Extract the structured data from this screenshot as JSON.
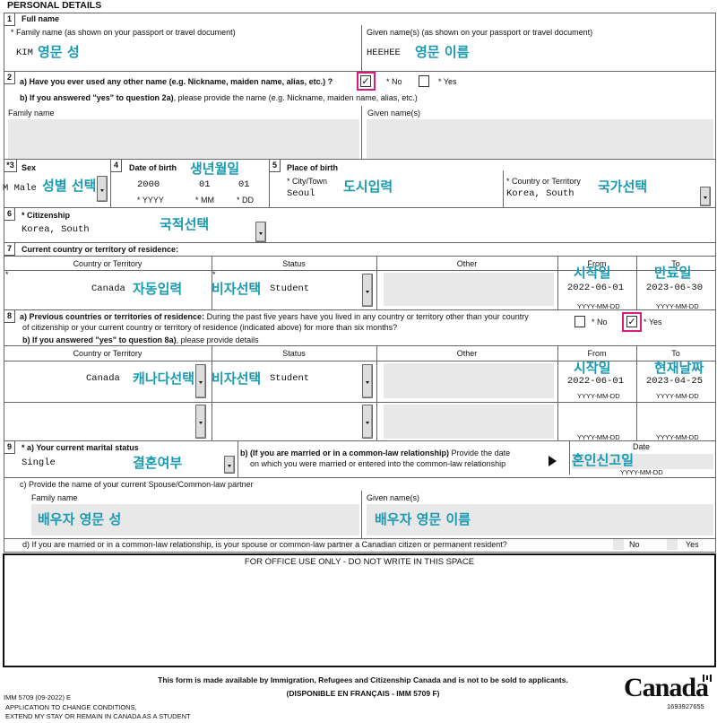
{
  "title": "PERSONAL DETAILS",
  "colors": {
    "annotation": "#1a9ab0",
    "highlight": "#d81b7c",
    "field_gray": "#e8e8e8"
  },
  "s1": {
    "num": "1",
    "label": "Full name",
    "family_label": "* Family name (as shown on your passport or travel document)",
    "given_label": "Given name(s) (as shown on your passport or travel document)",
    "family_value": "KIM",
    "given_value": "HEEHEE",
    "family_note": "영문 성",
    "given_note": "영문 이름"
  },
  "s2": {
    "num": "2",
    "a_label": "a) Have you ever used any other name (e.g. Nickname, maiden name, alias, etc.) ?",
    "no": "* No",
    "yes": "* Yes",
    "no_checked": true,
    "yes_checked": false,
    "check": "✓",
    "b_bold": "b) If you answered \"yes\" to question 2a)",
    "b_rest": ", please provide the name (e.g. Nickname, maiden name, alias, etc.)",
    "family_label": "Family name",
    "given_label": "Given name(s)"
  },
  "s3": {
    "num": "*3",
    "label": "Sex",
    "value": "M Male",
    "note": "성별 선택"
  },
  "s4": {
    "num": "4",
    "label": "Date of birth",
    "yyyy": "2000",
    "dd": "01",
    "mm_partial": "01",
    "yyyy_label": "* YYYY",
    "mm_label": "* MM",
    "dd_label": "* DD",
    "note": "생년월일"
  },
  "s5": {
    "num": "5",
    "label": "Place of birth",
    "city_label": "* City/Town",
    "city_value": "Seoul",
    "city_note": "도시입력",
    "country_label": "* Country or Territory",
    "country_value": "Korea, South",
    "country_note": "국가선택"
  },
  "s6": {
    "num": "6",
    "label": "* Citizenship",
    "value": "Korea, South",
    "note": "국적선택"
  },
  "s7": {
    "num": "7",
    "label": "Current country or territory of residence:",
    "headers": [
      "Country or Territory",
      "Status",
      "Other",
      "From",
      "To"
    ],
    "row": {
      "country": "Canada",
      "country_note": "자동입력",
      "status": "Student",
      "status_note": "비자선택",
      "from": "2022-06-01",
      "to": "2023-06-30",
      "from_note": "시작일",
      "to_note": "만료일"
    },
    "date_fmt": "YYYY-MM-DD"
  },
  "s8": {
    "num": "8",
    "a_bold": "a) Previous countries or territories of residence:",
    "a_rest": " During the past five years have you lived in any country or territory other than your country",
    "a_line2": "of citizenship or your current country or territory of residence (indicated above) for more than six months?",
    "no": "* No",
    "yes": "* Yes",
    "no_checked": false,
    "yes_checked": true,
    "check": "✓",
    "b_bold": "b) If you answered \"yes\" to question 8a)",
    "b_rest": ", please provide details",
    "headers": [
      "Country or Territory",
      "Status",
      "Other",
      "From",
      "To"
    ],
    "row1": {
      "country": "Canada",
      "country_note": "캐나다선택",
      "status": "Student",
      "status_note": "비자선택",
      "from": "2022-06-01",
      "to": "2023-04-25",
      "from_note": "시작일",
      "to_note": "현재날짜"
    },
    "date_fmt": "YYYY-MM-DD"
  },
  "s9": {
    "num": "9",
    "a_label": "* a) Your current marital status",
    "a_value": "Single",
    "a_note": "결혼여부",
    "b_bold": "b) (If you are married or in a common-law relationship)",
    "b_rest": " Provide the date",
    "b_line2": "on which you were married or entered into the common-law relationship",
    "date_label": "Date",
    "date_note": "혼인신고일",
    "date_fmt": "YYYY-MM-DD",
    "c_label": "c) Provide the name of your current Spouse/Common-law partner",
    "family_label": "Family name",
    "given_label": "Given name(s)",
    "family_note": "배우자 영문 성",
    "given_note": "배우자 영문 이름",
    "d_label": "d)  If you are married or in a common-law relationship, is your spouse or common-law partner a Canadian citizen or permanent resident?",
    "no": "No",
    "yes": "Yes"
  },
  "office": "FOR OFFICE USE ONLY - DO NOT WRITE IN THIS SPACE",
  "footer": {
    "notice": "This form is made available by Immigration, Refugees and Citizenship Canada and is not to be sold to applicants.",
    "french": "(DISPONIBLE EN FRANÇAIS - IMM 5709 F)",
    "form_id": "IMM 5709 (09-2022) E",
    "app_line1": "APPLICATION TO CHANGE CONDITIONS,",
    "app_line2": "EXTEND MY STAY OR REMAIN IN CANADA AS A STUDENT",
    "logo": "Canada",
    "barcode_num": "1693927655"
  }
}
